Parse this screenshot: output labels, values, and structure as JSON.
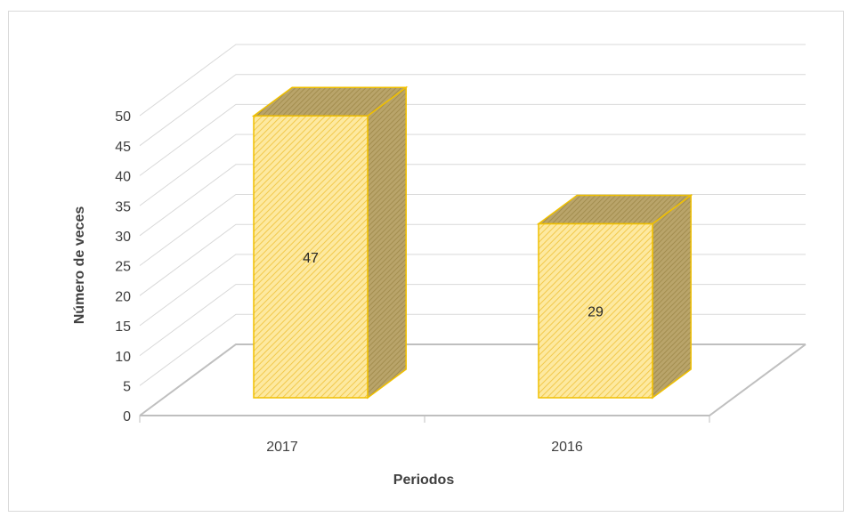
{
  "chart_data": {
    "type": "bar3d",
    "x_label": "Periodos",
    "y_label": "Número de veces",
    "categories": [
      "2017",
      "2016"
    ],
    "values": [
      47,
      29
    ],
    "color": "#fce28a",
    "ylim": [
      0,
      50
    ],
    "yticks": [
      0,
      5,
      10,
      15,
      20,
      25,
      30,
      35,
      40,
      45,
      50
    ],
    "grid": true
  }
}
